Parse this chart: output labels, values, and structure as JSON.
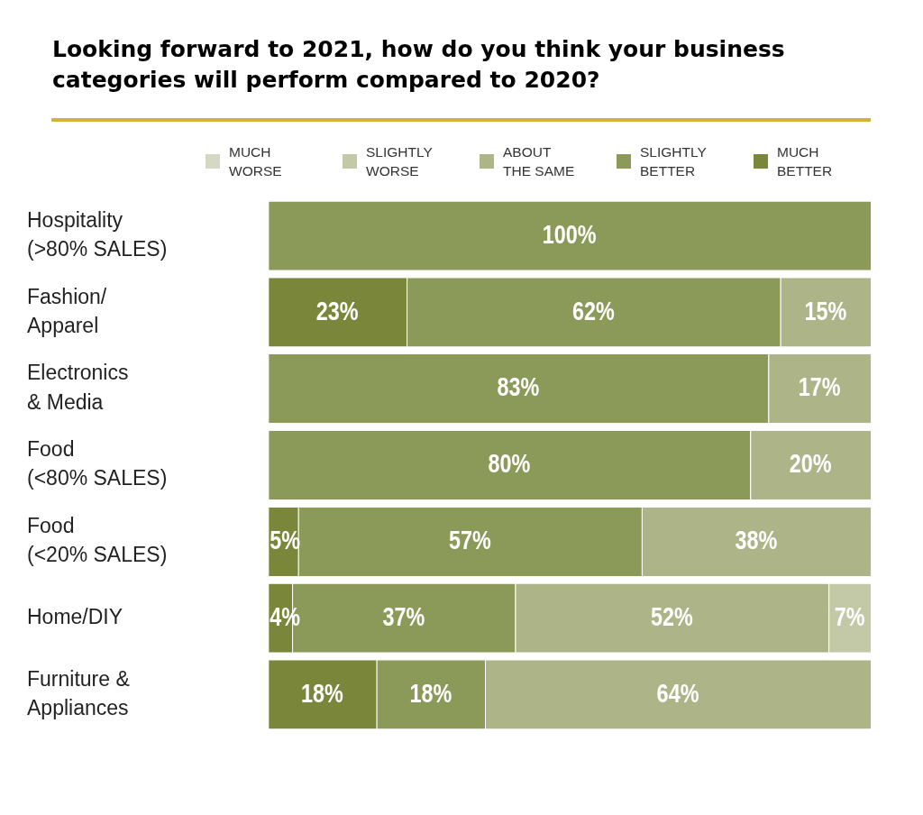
{
  "chart_data": {
    "type": "bar",
    "orientation": "horizontal",
    "stacked": true,
    "title": "Looking forward to 2021, how do you think your business categories will perform compared to 2020?",
    "categories": [
      "Hospitality\n(>80% SALES)",
      "Fashion/\nApparel",
      "Electronics\n& Media",
      "Food\n(<80% SALES)",
      "Food\n(<20% SALES)",
      "Home/DIY",
      "Furniture &\nAppliances"
    ],
    "xlim": [
      0,
      100
    ],
    "tick_labels": "y",
    "grid": false,
    "legend": "top",
    "series": [
      {
        "name": "MUCH\nBETTER",
        "color": "#7a873a",
        "values": [
          null,
          23,
          null,
          null,
          5,
          4,
          18
        ],
        "value_labels": [
          null,
          "23%",
          null,
          null,
          "5%",
          "4%",
          "18%"
        ]
      },
      {
        "name": "SLIGHTLY\nBETTER",
        "color": "#8c9a59",
        "values": [
          100,
          62,
          83,
          80,
          57,
          37,
          18
        ],
        "value_labels": [
          "100%",
          "62%",
          "83%",
          "80%",
          "57%",
          "37%",
          "18%"
        ]
      },
      {
        "name": "ABOUT\nTHE SAME",
        "color": "#adb588",
        "values": [
          null,
          15,
          17,
          20,
          38,
          52,
          64
        ],
        "value_labels": [
          null,
          "15%",
          "17%",
          "20%",
          "38%",
          "52%",
          "64%"
        ]
      },
      {
        "name": "SLIGHTLY\nWORSE",
        "color": "#c3c8a7",
        "values": [
          null,
          null,
          null,
          null,
          null,
          7,
          null
        ],
        "value_labels": [
          null,
          null,
          null,
          null,
          null,
          "7%",
          null
        ]
      },
      {
        "name": "MUCH\nWORSE",
        "color": "#d5d8c3",
        "values": [
          null,
          null,
          null,
          null,
          null,
          null,
          null
        ],
        "value_labels": [
          null,
          null,
          null,
          null,
          null,
          null,
          null
        ]
      }
    ]
  }
}
